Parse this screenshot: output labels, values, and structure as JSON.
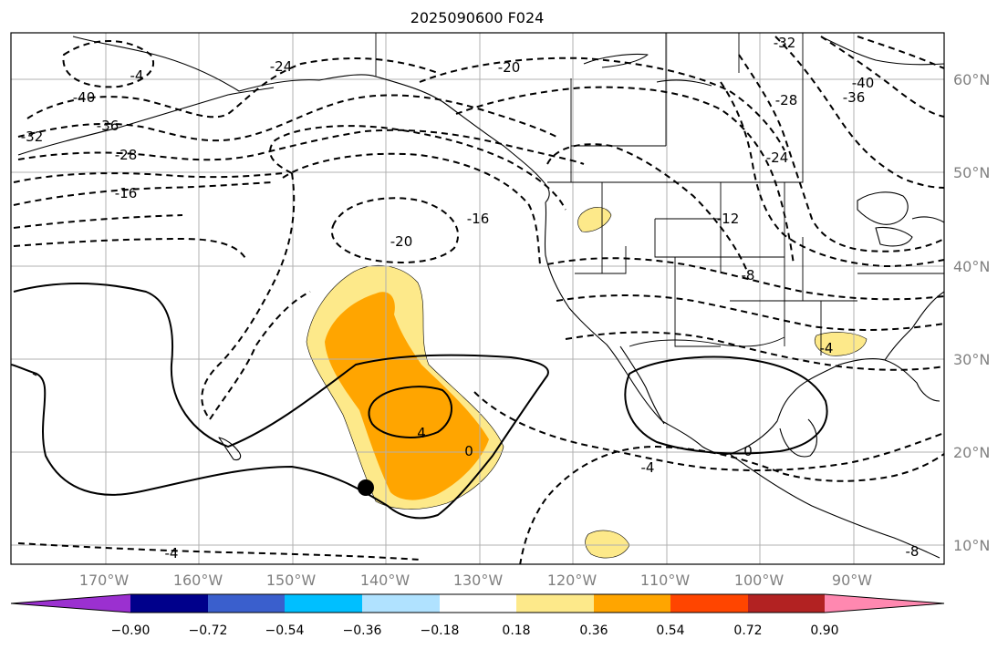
{
  "title": "2025090600 F024",
  "map": {
    "lat_labels": [
      "60°N",
      "50°N",
      "40°N",
      "30°N",
      "20°N",
      "10°N"
    ],
    "lon_labels": [
      "170°W",
      "160°W",
      "150°W",
      "140°W",
      "130°W",
      "120°W",
      "110°W",
      "100°W",
      "90°W"
    ],
    "contour_labels": [
      "-40",
      "-36",
      "-32",
      "-28",
      "-24",
      "-20",
      "-16",
      "-20",
      "-16",
      "-12",
      "-8",
      "-4",
      "-4",
      "-4",
      "0",
      "0",
      "4",
      "-28",
      "-32",
      "-36",
      "-40",
      "-24",
      "-8",
      "-4"
    ],
    "marker": "storm-center-dot",
    "shading_colors": {
      "light": "#fde98a",
      "medium": "#ffa500"
    }
  },
  "colorbar": {
    "ticks": [
      "−0.90",
      "−0.72",
      "−0.54",
      "−0.36",
      "−0.18",
      "0.18",
      "0.36",
      "0.54",
      "0.72",
      "0.90"
    ],
    "colors": [
      "#9b30d0",
      "#00008b",
      "#3a5fcd",
      "#00bfff",
      "#b0e2ff",
      "#ffffff",
      "#fde98a",
      "#ffa500",
      "#ff4500",
      "#b22222",
      "#ff88b0"
    ]
  }
}
